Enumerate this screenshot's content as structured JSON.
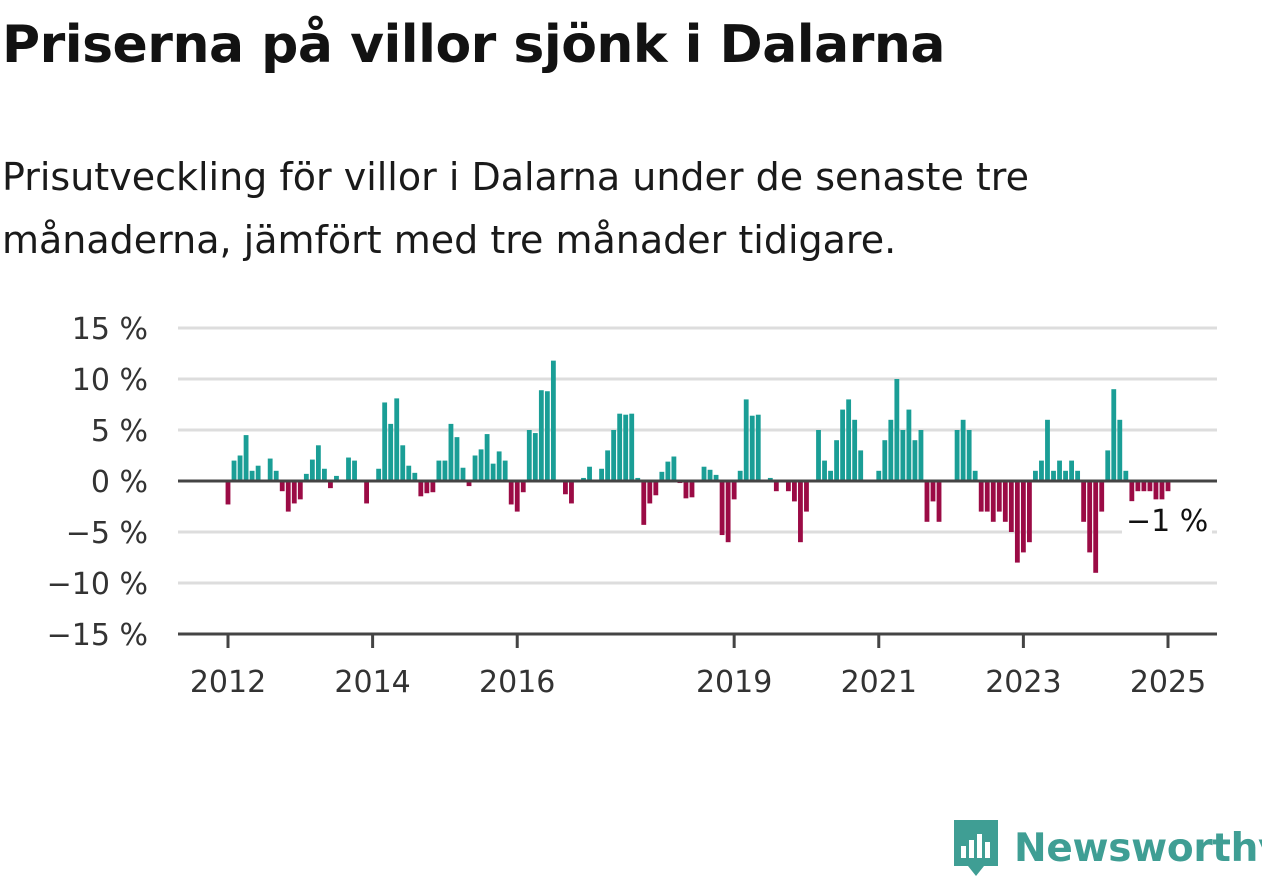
{
  "title": "Priserna på villor sjönk i Dalarna",
  "subtitle": "Prisutveckling för villor i Dalarna under de senaste tre månaderna, jämfört med tre månader tidigare.",
  "brand": {
    "name": "Newsworthy",
    "icon": "newsworthy-logo-icon"
  },
  "colors": {
    "positive": "#1a9e96",
    "negative": "#9b0b45",
    "grid": "#dddddd",
    "axis": "#444444",
    "brand": "#3f9e94"
  },
  "chart_data": {
    "type": "bar",
    "title": "",
    "xlabel": "",
    "ylabel": "",
    "grid": true,
    "ylim": [
      -15,
      15
    ],
    "y_ticks": [
      15,
      10,
      5,
      0,
      -5,
      -10,
      -15
    ],
    "y_tick_labels": [
      "15 %",
      "10 %",
      "5 %",
      "0 %",
      "−5 %",
      "−10 %",
      "−15 %"
    ],
    "x_start": "2012-01",
    "x_end": "2025-01",
    "x_ticks": [
      "2012",
      "2014",
      "2016",
      "2019",
      "2021",
      "2023",
      "2025"
    ],
    "end_label": "−1 %",
    "series": [
      {
        "values": [
          -2.3,
          2,
          2.5,
          4.5,
          1,
          1.5,
          0,
          2.2,
          1,
          -1,
          -3,
          -2.2,
          -1.8,
          0.7,
          2.1,
          3.5,
          1.2,
          -0.7,
          0.5,
          0,
          2.3,
          2,
          0,
          -2.2,
          0,
          1.2,
          7.7,
          5.6,
          8.1,
          3.5,
          1.5,
          0.8,
          -1.5,
          -1.2,
          -1.1,
          2,
          2,
          5.6,
          4.3,
          1.3,
          -0.5,
          2.5,
          3.1,
          4.6,
          1.7,
          2.9,
          2,
          -2.3,
          -3,
          -1.1,
          5,
          4.7,
          8.9,
          8.8,
          11.8,
          0,
          -1.3,
          -2.2,
          0,
          0.3,
          1.4,
          0,
          1.2,
          3,
          5,
          6.6,
          6.5,
          6.6,
          0.3,
          -4.3,
          -2.2,
          -1.4,
          0.9,
          1.9,
          2.4,
          -0.2,
          -1.7,
          -1.6,
          0,
          1.4,
          1.1,
          0.6,
          -5.3,
          -6,
          -1.8,
          1,
          8,
          6.4,
          6.5,
          0,
          0.3,
          -1,
          0,
          -1,
          -2,
          -6,
          -3,
          0,
          5,
          2,
          1,
          4,
          7,
          8,
          6,
          3,
          0,
          0,
          1,
          4,
          6,
          10,
          5,
          7,
          4,
          5,
          -4,
          -2,
          -4,
          0,
          0,
          5,
          6,
          5,
          1,
          -3,
          -3,
          -4,
          -3,
          -4,
          -5,
          -8,
          -7,
          -6,
          1,
          2,
          6,
          1,
          2,
          1,
          2,
          1,
          -4,
          -7,
          -9,
          -3,
          3,
          9,
          6,
          1,
          -2,
          -1,
          -1,
          -1,
          -1.8,
          -1.8,
          -1
        ]
      }
    ]
  }
}
